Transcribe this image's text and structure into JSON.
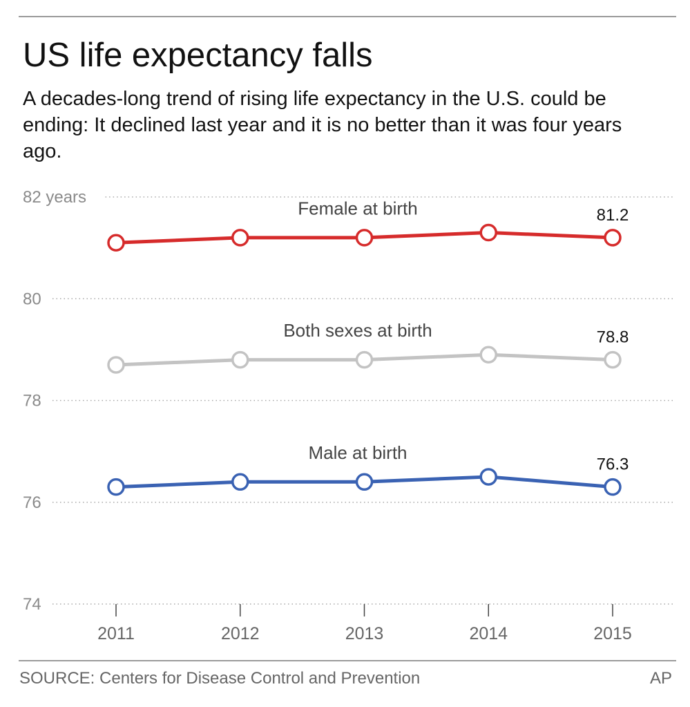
{
  "header": {
    "title": "US life expectancy falls",
    "subtitle": "A decades-long trend of rising life expectancy in the U.S. could be ending: It declined last year and it is no better than it was four years ago."
  },
  "footer": {
    "source": "SOURCE: Centers for Disease Control and Prevention",
    "credit": "AP"
  },
  "chart_data": {
    "type": "line",
    "title": "US life expectancy falls",
    "x": [
      "2011",
      "2012",
      "2013",
      "2014",
      "2015"
    ],
    "xlabel": "",
    "ylabel": "",
    "ylim": [
      74,
      82
    ],
    "y_ticks": [
      {
        "value": 82,
        "label": "82 years"
      },
      {
        "value": 80,
        "label": "80"
      },
      {
        "value": 78,
        "label": "78"
      },
      {
        "value": 76,
        "label": "76"
      },
      {
        "value": 74,
        "label": "74"
      }
    ],
    "grid": true,
    "series": [
      {
        "name": "Female at birth",
        "values": [
          81.1,
          81.2,
          81.2,
          81.3,
          81.2
        ],
        "color": "#d62b2b",
        "end_label": "81.2"
      },
      {
        "name": "Both sexes at birth",
        "values": [
          78.7,
          78.8,
          78.8,
          78.9,
          78.8
        ],
        "color": "#c3c3c3",
        "end_label": "78.8"
      },
      {
        "name": "Male at birth",
        "values": [
          76.3,
          76.4,
          76.4,
          76.5,
          76.3
        ],
        "color": "#3a62b3",
        "end_label": "76.3"
      }
    ]
  }
}
